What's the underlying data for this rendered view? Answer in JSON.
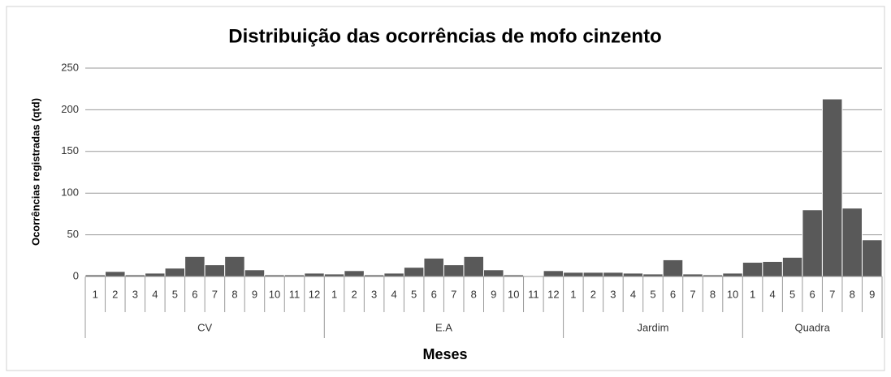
{
  "chart_data": {
    "type": "bar",
    "title": "Distribuição das ocorrências de mofo cinzento",
    "x_label": "Meses",
    "y_label": "Ocorrências registradas (qtd)",
    "color": "#595959",
    "ylim": [
      0,
      250
    ],
    "yticks": [
      0,
      50,
      100,
      150,
      200,
      250
    ],
    "grid": true,
    "groups": [
      {
        "name": "CV",
        "categories": [
          "1",
          "2",
          "3",
          "4",
          "5",
          "6",
          "7",
          "8",
          "9",
          "10",
          "11",
          "12"
        ],
        "values": [
          2,
          6,
          2,
          4,
          10,
          24,
          14,
          24,
          8,
          2,
          2,
          4
        ]
      },
      {
        "name": "E.A",
        "categories": [
          "1",
          "2",
          "3",
          "4",
          "5",
          "6",
          "7",
          "8",
          "9",
          "10",
          "11",
          "12"
        ],
        "values": [
          3,
          7,
          2,
          4,
          11,
          22,
          14,
          24,
          8,
          2,
          0,
          7
        ]
      },
      {
        "name": "Jardim",
        "categories": [
          "1",
          "2",
          "3",
          "4",
          "5",
          "6",
          "7",
          "8",
          "10"
        ],
        "values": [
          5,
          5,
          5,
          4,
          3,
          20,
          3,
          2,
          4
        ]
      },
      {
        "name": "Quadra",
        "categories": [
          "1",
          "4",
          "5",
          "6",
          "7",
          "8",
          "9"
        ],
        "values": [
          17,
          18,
          23,
          80,
          213,
          82,
          44
        ]
      }
    ]
  }
}
